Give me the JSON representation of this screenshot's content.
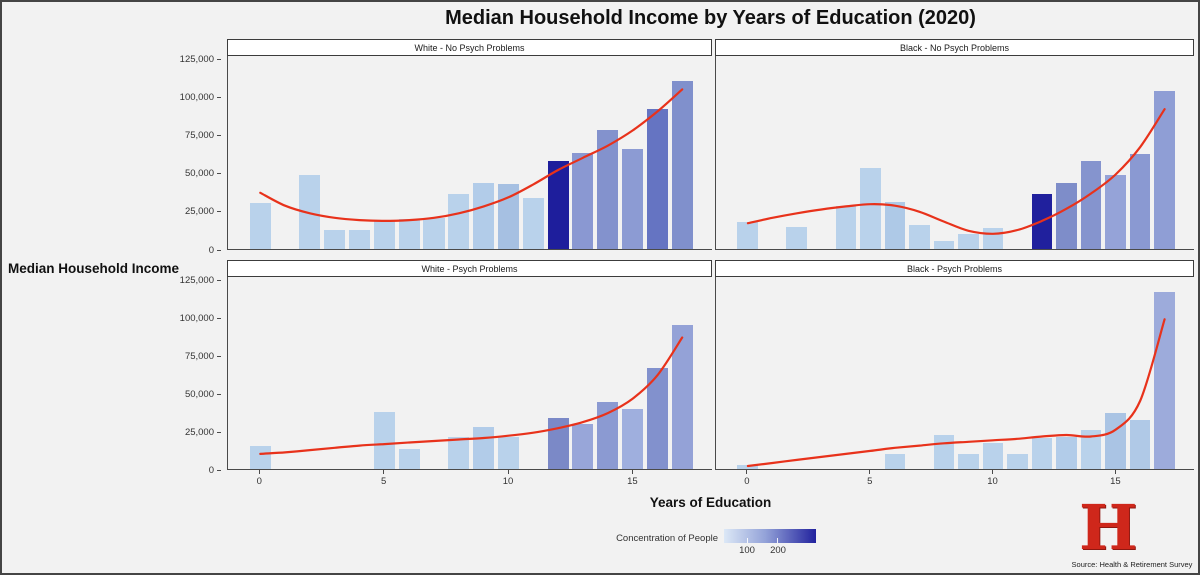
{
  "title": "Median Household Income by Years of Education (2020)",
  "axes": {
    "y_label": "Median Household Income",
    "x_label": "Years of Education"
  },
  "legend": {
    "label": "Concentration of People",
    "tick_labels": [
      "100",
      "200"
    ],
    "gradient_colors": [
      "#dce8f6",
      "#93a2d8",
      "#22229e"
    ]
  },
  "logo": {
    "text": "H",
    "color": "#cf271b"
  },
  "source": "Source: Health & Retirement Survey",
  "chart_data": {
    "type": "bar",
    "x_domain": [
      0,
      17
    ],
    "ylim": [
      0,
      127000
    ],
    "line_color": "#e8321b",
    "bar_default_color": "#b9d2eb",
    "y_ticks": [
      {
        "value": 0,
        "label": "0"
      },
      {
        "value": 25000,
        "label": "25,000"
      },
      {
        "value": 50000,
        "label": "50,000"
      },
      {
        "value": 75000,
        "label": "75,000"
      },
      {
        "value": 100000,
        "label": "100,000"
      },
      {
        "value": 125000,
        "label": "125,000"
      }
    ],
    "x_ticks": [
      {
        "value": 0,
        "label": "0"
      },
      {
        "value": 5,
        "label": "5"
      },
      {
        "value": 10,
        "label": "10"
      },
      {
        "value": 15,
        "label": "15"
      }
    ],
    "panels": [
      {
        "title": "White - No Psych Problems",
        "bars": [
          {
            "x": 0,
            "value": 30000,
            "color": "#b9d2eb"
          },
          {
            "x": 2,
            "value": 48500,
            "color": "#b9d2eb"
          },
          {
            "x": 3,
            "value": 12500,
            "color": "#b9d2eb"
          },
          {
            "x": 4,
            "value": 12500,
            "color": "#b9d2eb"
          },
          {
            "x": 5,
            "value": 18500,
            "color": "#b9d2eb"
          },
          {
            "x": 6,
            "value": 19500,
            "color": "#b9d2eb"
          },
          {
            "x": 7,
            "value": 20500,
            "color": "#b9d2eb"
          },
          {
            "x": 8,
            "value": 36500,
            "color": "#b9d2eb"
          },
          {
            "x": 9,
            "value": 43500,
            "color": "#b2cce9"
          },
          {
            "x": 10,
            "value": 42500,
            "color": "#a6c0e2"
          },
          {
            "x": 11,
            "value": 33500,
            "color": "#b9d2eb"
          },
          {
            "x": 12,
            "value": 58000,
            "color": "#1e1e9c"
          },
          {
            "x": 13,
            "value": 63000,
            "color": "#8a98d2"
          },
          {
            "x": 14,
            "value": 78500,
            "color": "#8392cd"
          },
          {
            "x": 15,
            "value": 66000,
            "color": "#8c9bd3"
          },
          {
            "x": 16,
            "value": 92000,
            "color": "#6574c2"
          },
          {
            "x": 17,
            "value": 110500,
            "color": "#8090cc"
          }
        ],
        "trend": [
          [
            0,
            37000
          ],
          [
            1,
            28500
          ],
          [
            2,
            23500
          ],
          [
            3,
            20500
          ],
          [
            4,
            19000
          ],
          [
            5,
            18500
          ],
          [
            6,
            19000
          ],
          [
            7,
            20500
          ],
          [
            8,
            23500
          ],
          [
            9,
            28000
          ],
          [
            10,
            34000
          ],
          [
            11,
            42500
          ],
          [
            12,
            52000
          ],
          [
            13,
            60000
          ],
          [
            14,
            68000
          ],
          [
            15,
            78000
          ],
          [
            16,
            90500
          ],
          [
            17,
            105000
          ]
        ]
      },
      {
        "title": "Black - No Psych Problems",
        "bars": [
          {
            "x": 0,
            "value": 18000,
            "color": "#b9d2eb"
          },
          {
            "x": 2,
            "value": 14500,
            "color": "#b9d2eb"
          },
          {
            "x": 4,
            "value": 28000,
            "color": "#b9d2eb"
          },
          {
            "x": 5,
            "value": 53000,
            "color": "#b9d2eb"
          },
          {
            "x": 6,
            "value": 31000,
            "color": "#aec9e7"
          },
          {
            "x": 7,
            "value": 16000,
            "color": "#b9d2eb"
          },
          {
            "x": 8,
            "value": 5500,
            "color": "#b9d2eb"
          },
          {
            "x": 9,
            "value": 10000,
            "color": "#b9d2eb"
          },
          {
            "x": 10,
            "value": 13500,
            "color": "#b9d2eb"
          },
          {
            "x": 12,
            "value": 36500,
            "color": "#20209d"
          },
          {
            "x": 13,
            "value": 43500,
            "color": "#7e8dc9"
          },
          {
            "x": 14,
            "value": 58000,
            "color": "#8594ce"
          },
          {
            "x": 15,
            "value": 49000,
            "color": "#95a3d8"
          },
          {
            "x": 16,
            "value": 62500,
            "color": "#8a99d2"
          },
          {
            "x": 17,
            "value": 104000,
            "color": "#8f9ed5"
          }
        ],
        "trend": [
          [
            0,
            17000
          ],
          [
            1,
            20500
          ],
          [
            2,
            23500
          ],
          [
            3,
            26000
          ],
          [
            4,
            28000
          ],
          [
            5,
            29500
          ],
          [
            6,
            28500
          ],
          [
            7,
            24500
          ],
          [
            8,
            18000
          ],
          [
            9,
            12000
          ],
          [
            10,
            10000
          ],
          [
            11,
            12500
          ],
          [
            12,
            18500
          ],
          [
            13,
            26500
          ],
          [
            14,
            36500
          ],
          [
            15,
            49000
          ],
          [
            16,
            67000
          ],
          [
            17,
            92000
          ]
        ]
      },
      {
        "title": "White - Psych Problems",
        "bars": [
          {
            "x": 0,
            "value": 15000,
            "color": "#b9d2eb"
          },
          {
            "x": 5,
            "value": 37500,
            "color": "#b9d2eb"
          },
          {
            "x": 6,
            "value": 13000,
            "color": "#b9d2eb"
          },
          {
            "x": 8,
            "value": 21000,
            "color": "#b9d2eb"
          },
          {
            "x": 9,
            "value": 28000,
            "color": "#b2cce9"
          },
          {
            "x": 10,
            "value": 21500,
            "color": "#b9d2eb"
          },
          {
            "x": 12,
            "value": 34000,
            "color": "#7b89c7"
          },
          {
            "x": 13,
            "value": 30000,
            "color": "#98a6d9"
          },
          {
            "x": 14,
            "value": 44000,
            "color": "#8b9ad2"
          },
          {
            "x": 15,
            "value": 40000,
            "color": "#9fafde"
          },
          {
            "x": 16,
            "value": 67000,
            "color": "#8291cd"
          },
          {
            "x": 17,
            "value": 95000,
            "color": "#94a2d7"
          }
        ],
        "trend": [
          [
            0,
            10000
          ],
          [
            1,
            11000
          ],
          [
            2,
            12500
          ],
          [
            3,
            14000
          ],
          [
            4,
            15500
          ],
          [
            5,
            16500
          ],
          [
            6,
            17500
          ],
          [
            7,
            18500
          ],
          [
            8,
            19500
          ],
          [
            9,
            20500
          ],
          [
            10,
            22000
          ],
          [
            11,
            24000
          ],
          [
            12,
            27000
          ],
          [
            13,
            31000
          ],
          [
            14,
            37000
          ],
          [
            15,
            46500
          ],
          [
            16,
            62000
          ],
          [
            17,
            87000
          ]
        ]
      },
      {
        "title": "Black - Psych Problems",
        "bars": [
          {
            "x": 0,
            "value": 2500,
            "color": "#b9d2eb"
          },
          {
            "x": 6,
            "value": 10000,
            "color": "#b9d2eb"
          },
          {
            "x": 8,
            "value": 22500,
            "color": "#b9d2eb"
          },
          {
            "x": 9,
            "value": 10000,
            "color": "#b9d2eb"
          },
          {
            "x": 10,
            "value": 17500,
            "color": "#b9d2eb"
          },
          {
            "x": 11,
            "value": 10000,
            "color": "#b9d2eb"
          },
          {
            "x": 12,
            "value": 20500,
            "color": "#b9d2eb"
          },
          {
            "x": 13,
            "value": 21500,
            "color": "#b2cce9"
          },
          {
            "x": 14,
            "value": 26000,
            "color": "#b9d2eb"
          },
          {
            "x": 15,
            "value": 37000,
            "color": "#aac4e4"
          },
          {
            "x": 16,
            "value": 32500,
            "color": "#b0c9e7"
          },
          {
            "x": 17,
            "value": 117000,
            "color": "#9dabdb"
          }
        ],
        "trend": [
          [
            0,
            2000
          ],
          [
            1,
            4000
          ],
          [
            2,
            6000
          ],
          [
            3,
            8000
          ],
          [
            4,
            10000
          ],
          [
            5,
            12000
          ],
          [
            6,
            14000
          ],
          [
            7,
            15500
          ],
          [
            8,
            17000
          ],
          [
            9,
            18000
          ],
          [
            10,
            19000
          ],
          [
            11,
            20000
          ],
          [
            12,
            21500
          ],
          [
            13,
            22500
          ],
          [
            14,
            21500
          ],
          [
            15,
            26000
          ],
          [
            16,
            45000
          ],
          [
            17,
            99000
          ]
        ]
      }
    ]
  }
}
